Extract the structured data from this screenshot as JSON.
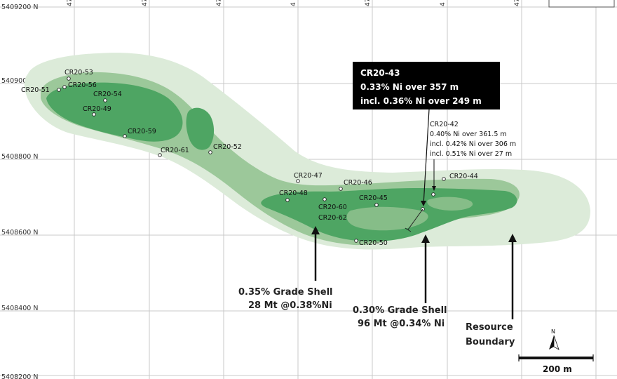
{
  "northings": [
    "5409200 N",
    "5409000 N",
    "5408800 N",
    "5408600 N",
    "5408400 N",
    "5408200 N"
  ],
  "eastings": [
    "47",
    "47",
    "47",
    "4",
    "47",
    "4",
    "47"
  ],
  "drillholes": {
    "cr20_53": "CR20-53",
    "cr20_56": "CR20-56",
    "cr20_51": "CR20-51",
    "cr20_54": "CR20-54",
    "cr20_49": "CR20-49",
    "cr20_59": "CR20-59",
    "cr20_61": "CR20-61",
    "cr20_52": "CR20-52",
    "cr20_47": "CR20-47",
    "cr20_48": "CR20-48",
    "cr20_46": "CR20-46",
    "cr20_60": "CR20-60",
    "cr20_62": "CR20-62",
    "cr20_45": "CR20-45",
    "cr20_50": "CR20-50",
    "cr20_44": "CR20-44"
  },
  "callout_43": {
    "hole": "CR20-43",
    "line1": "0.33% Ni over 357 m",
    "line2": "incl. 0.36% Ni over 249 m"
  },
  "callout_42": {
    "hole": "CR20-42",
    "line1": "0.40% Ni over 361.5 m",
    "line2": "incl. 0.42% Ni over 306 m",
    "line3": "incl. 0.51% Ni over 27 m"
  },
  "shell_035": {
    "line1": "0.35% Grade Shell",
    "line2": "28 Mt @0.38%Ni"
  },
  "shell_030": {
    "line1": "0.30% Grade Shell",
    "line2": "96 Mt @0.34% Ni"
  },
  "resource": {
    "line1": "Resource",
    "line2": "Boundary"
  },
  "scale_bar": "200 m",
  "north": "N",
  "colors": {
    "resource_boundary": "#dcebd9",
    "shell_030": "#9cc89a",
    "shell_035": "#4ea563",
    "callout_bg": "#000000"
  }
}
